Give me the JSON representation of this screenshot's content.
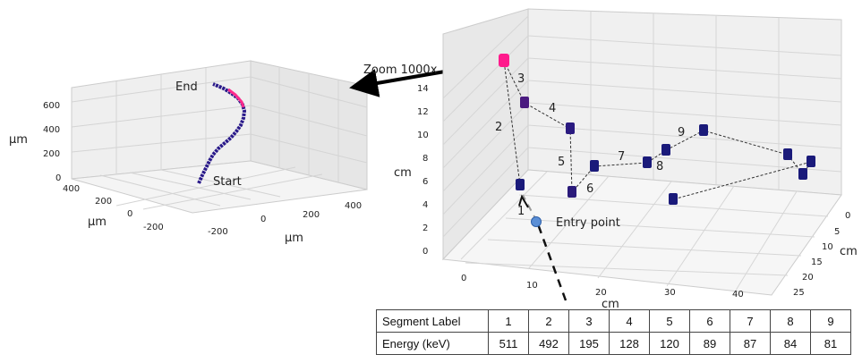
{
  "left_plot": {
    "z_ticks": [
      "0",
      "200",
      "400",
      "600"
    ],
    "y_ticks": [
      "400",
      "200",
      "0",
      "-200"
    ],
    "x_ticks": [
      "-200",
      "0",
      "200",
      "400"
    ],
    "z_label": "µm",
    "y_label": "µm",
    "x_label": "µm",
    "end_label": "End",
    "start_label": "Start"
  },
  "zoom_label": "Zoom 1000x",
  "right_plot": {
    "z_ticks": [
      "0",
      "2",
      "4",
      "6",
      "8",
      "10",
      "12",
      "14"
    ],
    "x_ticks": [
      "0",
      "10",
      "20",
      "30",
      "40"
    ],
    "y_ticks": [
      "0",
      "5",
      "10",
      "15",
      "20",
      "25"
    ],
    "z_label": "cm",
    "x_label": "cm",
    "y_label": "cm",
    "entry_label": "Entry point",
    "segment_labels": [
      "1",
      "2",
      "3",
      "4",
      "5",
      "6",
      "7",
      "8",
      "9"
    ]
  },
  "colors": {
    "grid_pane": "#f2f2f2",
    "grid_line": "#d6d6d6",
    "track_dark": "#1a1a7a",
    "track_mid": "#5a1a8a",
    "track_hot": "#ff1a8c",
    "entry_point": "#5b8fd6"
  },
  "table": {
    "row1_header": "Segment Label",
    "row2_header": "Energy (keV)",
    "segments": [
      "1",
      "2",
      "3",
      "4",
      "5",
      "6",
      "7",
      "8",
      "9"
    ],
    "energies": [
      "511",
      "492",
      "195",
      "128",
      "120",
      "89",
      "87",
      "84",
      "81"
    ]
  }
}
